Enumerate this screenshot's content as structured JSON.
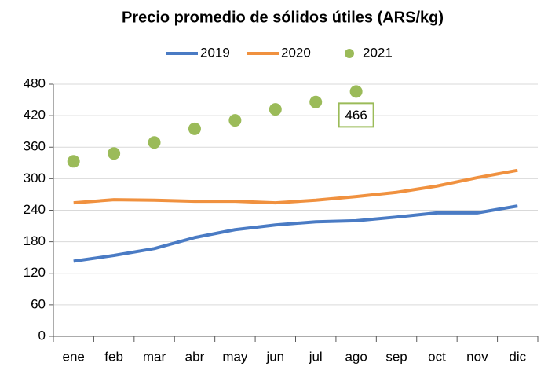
{
  "chart_data": {
    "type": "line",
    "title": "Precio promedio de sólidos útiles (ARS/kg)",
    "categories": [
      "ene",
      "feb",
      "mar",
      "abr",
      "may",
      "jun",
      "jul",
      "ago",
      "sep",
      "oct",
      "nov",
      "dic"
    ],
    "series": [
      {
        "name": "2019",
        "color": "#4a7bc4",
        "values": [
          143,
          154,
          167,
          188,
          203,
          212,
          218,
          220,
          227,
          235,
          235,
          248
        ]
      },
      {
        "name": "2020",
        "color": "#f0913f",
        "values": [
          254,
          260,
          259,
          257,
          257,
          254,
          259,
          266,
          274,
          286,
          302,
          316
        ]
      },
      {
        "name": "2021",
        "color": "#9bbb59",
        "type": "scatter",
        "values": [
          333,
          348,
          369,
          395,
          411,
          432,
          446,
          466,
          null,
          null,
          null,
          null
        ]
      }
    ],
    "ylim": [
      0,
      480
    ],
    "yticks": [
      0,
      60,
      120,
      180,
      240,
      300,
      360,
      420,
      480
    ],
    "grid": true,
    "annotation": {
      "series": 2,
      "index": 7
    }
  }
}
